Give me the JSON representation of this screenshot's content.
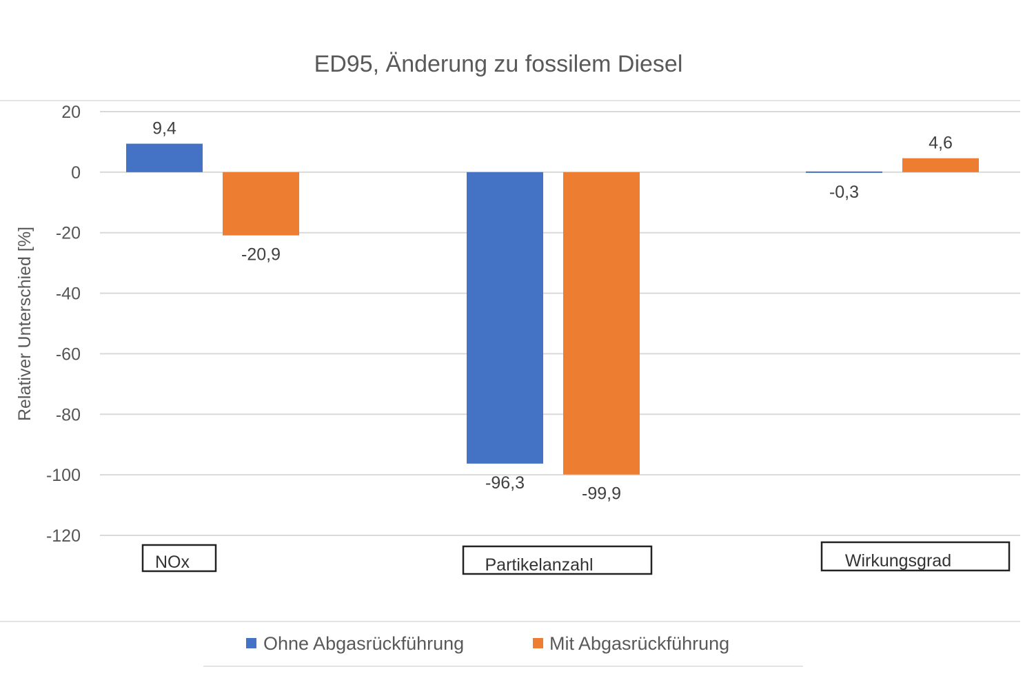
{
  "chart_data": {
    "type": "bar",
    "title": "ED95, Änderung zu fossilem Diesel",
    "ylabel": "Relativer Unterschied [%]",
    "xlabel": "",
    "categories": [
      "NOx",
      "Partikelanzahl",
      "Wirkungsgrad"
    ],
    "series": [
      {
        "name": "Ohne Abgasrückführung",
        "color": "#4472C4",
        "values": [
          9.4,
          -96.3,
          -0.3
        ],
        "labels": [
          "9,4",
          "-96,3",
          "-0,3"
        ]
      },
      {
        "name": "Mit Abgasrückführung",
        "color": "#ED7D31",
        "values": [
          -20.9,
          -99.9,
          4.6
        ],
        "labels": [
          "-20,9",
          "-99,9",
          "4,6"
        ]
      }
    ],
    "ylim": [
      -120,
      20
    ],
    "yticks": [
      20,
      0,
      -20,
      -40,
      -60,
      -80,
      -100,
      -120
    ],
    "ytick_labels": [
      "20",
      "0",
      "-20",
      "-40",
      "-60",
      "-80",
      "-100",
      "-120"
    ],
    "grid": true,
    "legend": "bottom"
  }
}
